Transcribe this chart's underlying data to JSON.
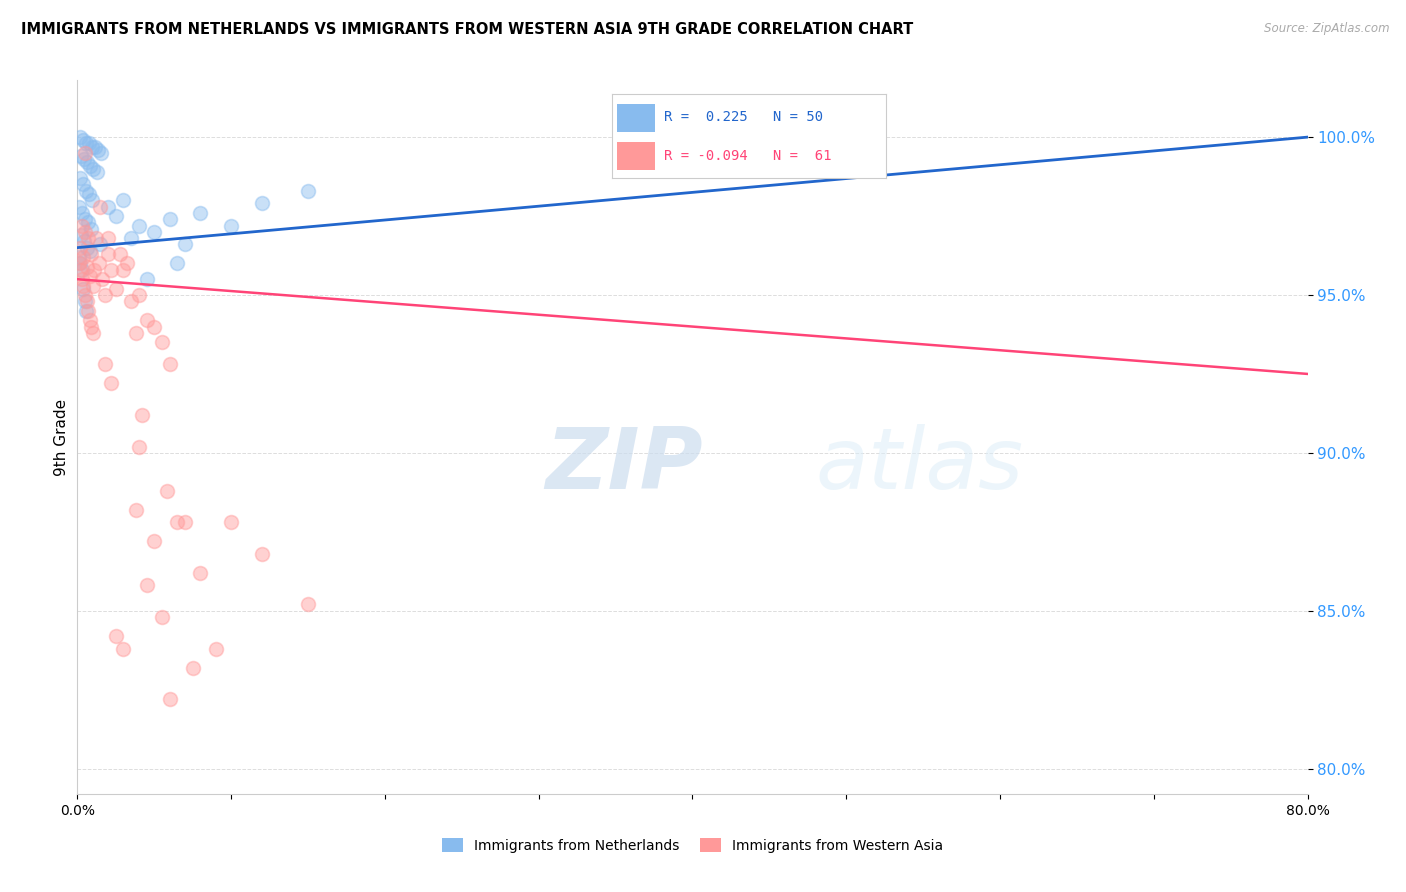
{
  "title": "IMMIGRANTS FROM NETHERLANDS VS IMMIGRANTS FROM WESTERN ASIA 9TH GRADE CORRELATION CHART",
  "source": "Source: ZipAtlas.com",
  "ylabel": "9th Grade",
  "ytick_vals": [
    80.0,
    85.0,
    90.0,
    95.0,
    100.0
  ],
  "ytick_labels": [
    "80.0%",
    "85.0%",
    "90.0%",
    "95.0%",
    "100.0%"
  ],
  "xmin": 0.0,
  "xmax": 80.0,
  "ymin": 79.2,
  "ymax": 101.8,
  "blue_R": "0.225",
  "blue_N": "50",
  "pink_R": "-0.094",
  "pink_N": "61",
  "blue_color": "#88BBEE",
  "pink_color": "#FF9999",
  "blue_line_color": "#2266CC",
  "pink_line_color": "#FF4477",
  "legend_label_blue": "Immigrants from Netherlands",
  "legend_label_pink": "Immigrants from Western Asia",
  "watermark_zip": "ZIP",
  "watermark_atlas": "atlas",
  "blue_trend_x": [
    0.0,
    80.0
  ],
  "blue_trend_y": [
    96.5,
    100.0
  ],
  "pink_trend_x": [
    0.0,
    80.0
  ],
  "pink_trend_y": [
    95.5,
    92.5
  ],
  "blue_points": [
    [
      0.15,
      100.0
    ],
    [
      0.35,
      99.9
    ],
    [
      0.55,
      99.8
    ],
    [
      0.75,
      99.8
    ],
    [
      0.95,
      99.7
    ],
    [
      1.15,
      99.7
    ],
    [
      1.35,
      99.6
    ],
    [
      1.55,
      99.5
    ],
    [
      0.25,
      99.4
    ],
    [
      0.45,
      99.3
    ],
    [
      0.65,
      99.2
    ],
    [
      0.85,
      99.1
    ],
    [
      1.05,
      99.0
    ],
    [
      1.25,
      98.9
    ],
    [
      0.18,
      98.7
    ],
    [
      0.38,
      98.5
    ],
    [
      0.58,
      98.3
    ],
    [
      0.78,
      98.2
    ],
    [
      0.98,
      98.0
    ],
    [
      0.12,
      97.8
    ],
    [
      0.32,
      97.6
    ],
    [
      0.52,
      97.4
    ],
    [
      0.72,
      97.3
    ],
    [
      0.92,
      97.1
    ],
    [
      0.22,
      96.9
    ],
    [
      0.42,
      96.7
    ],
    [
      0.62,
      96.5
    ],
    [
      0.82,
      96.4
    ],
    [
      1.5,
      96.6
    ],
    [
      2.0,
      97.8
    ],
    [
      2.5,
      97.5
    ],
    [
      3.0,
      98.0
    ],
    [
      3.5,
      96.8
    ],
    [
      4.0,
      97.2
    ],
    [
      5.0,
      97.0
    ],
    [
      6.0,
      97.4
    ],
    [
      7.0,
      96.6
    ],
    [
      8.0,
      97.6
    ],
    [
      0.08,
      96.2
    ],
    [
      0.18,
      96.0
    ],
    [
      0.28,
      95.8
    ],
    [
      10.0,
      97.2
    ],
    [
      12.0,
      97.9
    ],
    [
      15.0,
      98.3
    ],
    [
      0.38,
      95.2
    ],
    [
      0.58,
      94.5
    ],
    [
      4.5,
      95.5
    ],
    [
      6.5,
      96.0
    ],
    [
      40.0,
      100.2
    ],
    [
      0.48,
      94.8
    ]
  ],
  "pink_points": [
    [
      0.1,
      96.0
    ],
    [
      0.2,
      95.8
    ],
    [
      0.3,
      95.5
    ],
    [
      0.4,
      95.3
    ],
    [
      0.5,
      95.0
    ],
    [
      0.6,
      94.8
    ],
    [
      0.7,
      94.5
    ],
    [
      0.8,
      94.2
    ],
    [
      0.9,
      94.0
    ],
    [
      1.0,
      93.8
    ],
    [
      1.2,
      96.8
    ],
    [
      1.4,
      96.0
    ],
    [
      1.6,
      95.5
    ],
    [
      1.8,
      95.0
    ],
    [
      2.0,
      96.3
    ],
    [
      2.2,
      95.8
    ],
    [
      2.5,
      95.2
    ],
    [
      3.0,
      95.8
    ],
    [
      3.5,
      94.8
    ],
    [
      4.0,
      95.0
    ],
    [
      0.3,
      97.2
    ],
    [
      0.5,
      97.0
    ],
    [
      0.7,
      96.8
    ],
    [
      0.9,
      96.3
    ],
    [
      1.1,
      95.8
    ],
    [
      0.2,
      96.5
    ],
    [
      0.4,
      96.2
    ],
    [
      0.6,
      95.9
    ],
    [
      0.8,
      95.6
    ],
    [
      1.0,
      95.3
    ],
    [
      1.5,
      97.8
    ],
    [
      2.0,
      96.8
    ],
    [
      2.8,
      96.3
    ],
    [
      3.2,
      96.0
    ],
    [
      3.8,
      93.8
    ],
    [
      4.5,
      94.2
    ],
    [
      5.0,
      94.0
    ],
    [
      5.5,
      93.5
    ],
    [
      6.0,
      92.8
    ],
    [
      7.0,
      87.8
    ],
    [
      0.5,
      99.5
    ],
    [
      1.8,
      92.8
    ],
    [
      2.2,
      92.2
    ],
    [
      4.0,
      90.2
    ],
    [
      5.0,
      87.2
    ],
    [
      6.5,
      87.8
    ],
    [
      8.0,
      86.2
    ],
    [
      10.0,
      87.8
    ],
    [
      12.0,
      86.8
    ],
    [
      15.0,
      85.2
    ],
    [
      2.5,
      84.2
    ],
    [
      3.0,
      83.8
    ],
    [
      4.5,
      85.8
    ],
    [
      5.5,
      84.8
    ],
    [
      6.0,
      82.2
    ],
    [
      7.5,
      83.2
    ],
    [
      9.0,
      83.8
    ],
    [
      3.8,
      88.2
    ],
    [
      4.2,
      91.2
    ],
    [
      5.8,
      88.8
    ],
    [
      50.0,
      100.6
    ]
  ]
}
